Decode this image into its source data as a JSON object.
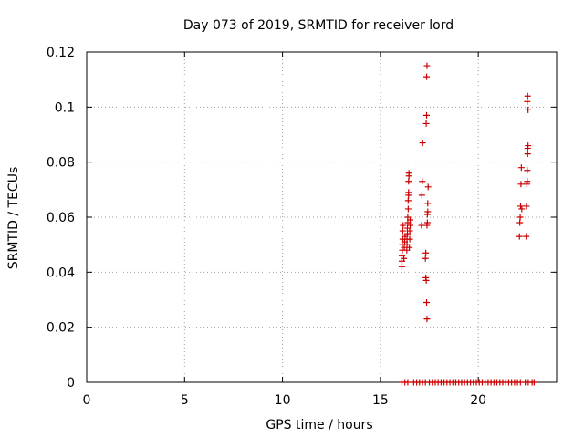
{
  "chart_data": {
    "type": "scatter",
    "title": "Day 073 of 2019, SRMTID for receiver lord",
    "xlabel": "GPS time / hours",
    "ylabel": "SRMTID / TECUs",
    "xlim": [
      0,
      24
    ],
    "ylim": [
      0,
      0.12
    ],
    "x_ticks": [
      0,
      5,
      10,
      15,
      20
    ],
    "x_tick_labels": [
      "0",
      "5",
      "10",
      "15",
      "20"
    ],
    "y_ticks": [
      0,
      0.02,
      0.04,
      0.06,
      0.08,
      0.1,
      0.12
    ],
    "y_tick_labels": [
      "0",
      "0.02",
      "0.04",
      "0.06",
      "0.08",
      "0.1",
      "0.12"
    ],
    "grid": true,
    "marker": "+",
    "color": "#cc0000",
    "series": [
      {
        "points": [
          [
            16.1,
            0.042
          ],
          [
            16.1,
            0.044
          ],
          [
            16.1,
            0.046
          ],
          [
            16.12,
            0.048
          ],
          [
            16.12,
            0.05
          ],
          [
            16.14,
            0.052
          ],
          [
            16.14,
            0.055
          ],
          [
            16.16,
            0.057
          ],
          [
            16.2,
            0.045
          ],
          [
            16.22,
            0.049
          ],
          [
            16.24,
            0.051
          ],
          [
            16.26,
            0.053
          ],
          [
            16.35,
            0.048
          ],
          [
            16.36,
            0.05
          ],
          [
            16.36,
            0.052
          ],
          [
            16.38,
            0.054
          ],
          [
            16.38,
            0.056
          ],
          [
            16.4,
            0.058
          ],
          [
            16.4,
            0.06
          ],
          [
            16.42,
            0.063
          ],
          [
            16.42,
            0.066
          ],
          [
            16.44,
            0.068
          ],
          [
            16.44,
            0.069
          ],
          [
            16.44,
            0.073
          ],
          [
            16.46,
            0.075
          ],
          [
            16.46,
            0.076
          ],
          [
            16.48,
            0.049
          ],
          [
            16.5,
            0.052
          ],
          [
            16.5,
            0.055
          ],
          [
            16.52,
            0.057
          ],
          [
            16.52,
            0.059
          ],
          [
            17.1,
            0.057
          ],
          [
            17.12,
            0.068
          ],
          [
            17.14,
            0.073
          ],
          [
            17.16,
            0.087
          ],
          [
            17.3,
            0.045
          ],
          [
            17.32,
            0.047
          ],
          [
            17.32,
            0.038
          ],
          [
            17.34,
            0.037
          ],
          [
            17.36,
            0.029
          ],
          [
            17.38,
            0.023
          ],
          [
            17.38,
            0.057
          ],
          [
            17.4,
            0.058
          ],
          [
            17.4,
            0.061
          ],
          [
            17.42,
            0.062
          ],
          [
            17.42,
            0.065
          ],
          [
            17.44,
            0.071
          ],
          [
            17.34,
            0.094
          ],
          [
            17.36,
            0.097
          ],
          [
            17.36,
            0.111
          ],
          [
            17.38,
            0.115
          ],
          [
            22.1,
            0.053
          ],
          [
            22.12,
            0.058
          ],
          [
            22.14,
            0.06
          ],
          [
            22.16,
            0.064
          ],
          [
            22.18,
            0.072
          ],
          [
            22.2,
            0.078
          ],
          [
            22.22,
            0.063
          ],
          [
            22.45,
            0.053
          ],
          [
            22.46,
            0.064
          ],
          [
            22.48,
            0.072
          ],
          [
            22.5,
            0.073
          ],
          [
            22.5,
            0.077
          ],
          [
            22.52,
            0.083
          ],
          [
            22.52,
            0.085
          ],
          [
            22.54,
            0.086
          ],
          [
            22.54,
            0.099
          ],
          [
            22.5,
            0.102
          ],
          [
            22.52,
            0.104
          ],
          [
            16.1,
            0
          ],
          [
            16.25,
            0
          ],
          [
            16.4,
            0
          ],
          [
            16.7,
            0
          ],
          [
            16.85,
            0
          ],
          [
            17.0,
            0
          ],
          [
            17.15,
            0
          ],
          [
            17.3,
            0
          ],
          [
            17.5,
            0
          ],
          [
            17.65,
            0
          ],
          [
            17.8,
            0
          ],
          [
            17.95,
            0
          ],
          [
            18.1,
            0
          ],
          [
            18.25,
            0
          ],
          [
            18.4,
            0
          ],
          [
            18.55,
            0
          ],
          [
            18.7,
            0
          ],
          [
            18.85,
            0
          ],
          [
            19.0,
            0
          ],
          [
            19.15,
            0
          ],
          [
            19.3,
            0
          ],
          [
            19.45,
            0
          ],
          [
            19.6,
            0
          ],
          [
            19.75,
            0
          ],
          [
            19.9,
            0
          ],
          [
            20.05,
            0
          ],
          [
            20.2,
            0
          ],
          [
            20.35,
            0
          ],
          [
            20.5,
            0
          ],
          [
            20.65,
            0
          ],
          [
            20.8,
            0
          ],
          [
            20.95,
            0
          ],
          [
            21.1,
            0
          ],
          [
            21.25,
            0
          ],
          [
            21.4,
            0
          ],
          [
            21.55,
            0
          ],
          [
            21.7,
            0
          ],
          [
            21.85,
            0
          ],
          [
            22.0,
            0
          ],
          [
            22.15,
            0
          ],
          [
            22.4,
            0
          ],
          [
            22.55,
            0
          ],
          [
            22.75,
            0
          ],
          [
            22.85,
            0
          ]
        ]
      }
    ]
  }
}
